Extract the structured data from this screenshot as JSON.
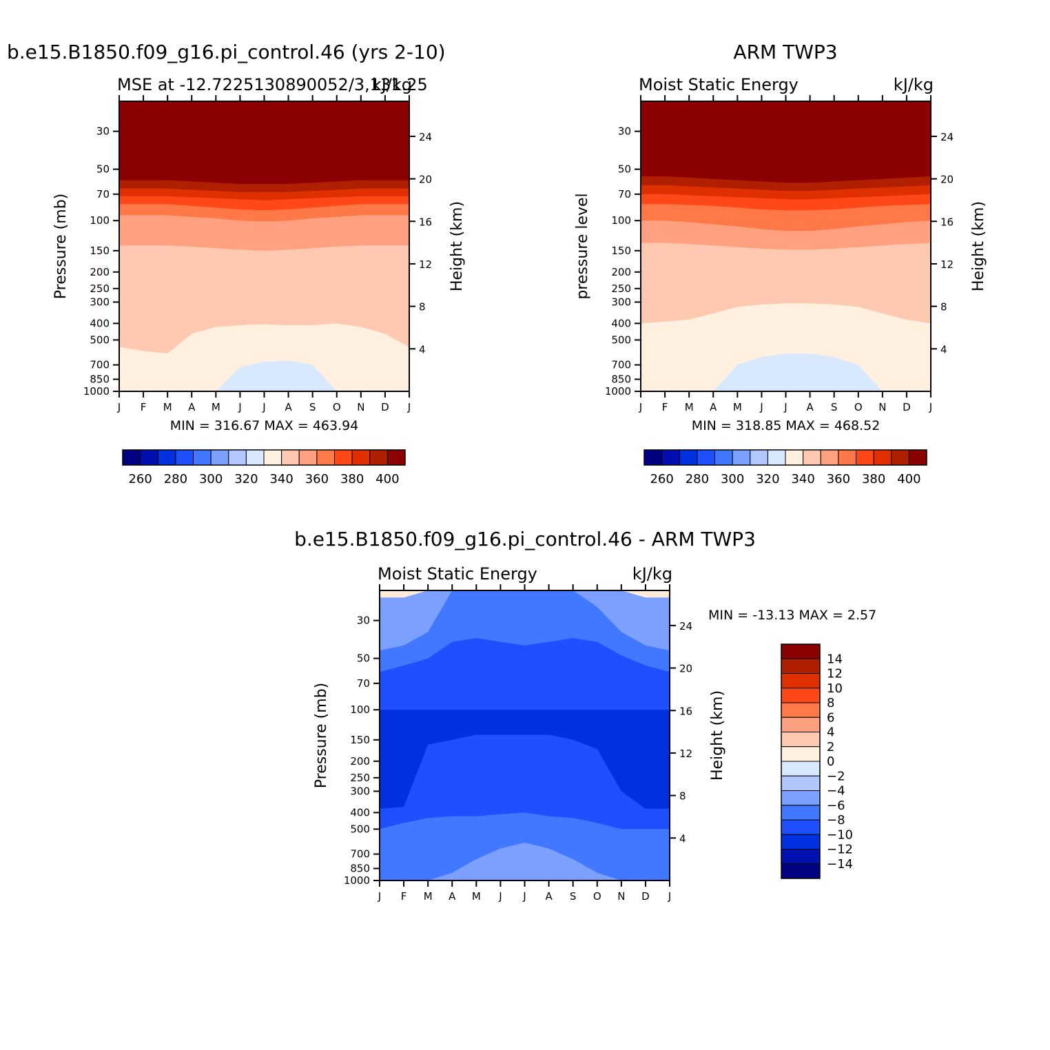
{
  "panels": [
    {
      "id": "model",
      "title": "b.e15.B1850.f09_g16.pi_control.46 (yrs 2-10)",
      "left_label": "MSE at -12.7225130890052/3,131.25",
      "right_label": "kJ/kg",
      "ylabel": "Pressure  (mb)",
      "ylabel_right": "Height  (km)",
      "minmax": "MIN = 316.67  MAX = 463.94"
    },
    {
      "id": "obs",
      "title": "ARM TWP3",
      "left_label": "Moist Static Energy",
      "right_label": "kJ/kg",
      "ylabel": "pressure  level",
      "ylabel_right": "Height  (km)",
      "minmax": "MIN = 318.85  MAX = 468.52"
    },
    {
      "id": "diff",
      "title": "b.e15.B1850.f09_g16.pi_control.46 - ARM TWP3",
      "left_label": "Moist Static Energy",
      "right_label": "kJ/kg",
      "ylabel": "Pressure  (mb)",
      "ylabel_right": "Height  (km)",
      "minmax": "MIN = -13.13  MAX =     2.57"
    }
  ],
  "chart_data": [
    {
      "type": "heatmap",
      "panel": "model",
      "x_ticks": [
        "J",
        "F",
        "M",
        "A",
        "M",
        "J",
        "J",
        "A",
        "S",
        "O",
        "N",
        "D",
        "J"
      ],
      "y_ticks_pressure": [
        30,
        50,
        70,
        100,
        150,
        200,
        250,
        300,
        400,
        500,
        700,
        850,
        1000
      ],
      "y_ticks_height": [
        24,
        20,
        16,
        12,
        8,
        4
      ],
      "levels": [
        260,
        270,
        280,
        290,
        300,
        310,
        320,
        330,
        340,
        350,
        360,
        370,
        380,
        390,
        400
      ],
      "colorbar_labels": [
        260,
        280,
        300,
        320,
        340,
        360,
        380,
        400
      ],
      "min": 316.67,
      "max": 463.94,
      "layers": [
        {
          "level": 390,
          "boundary": [
            58,
            58,
            58,
            59,
            60,
            61,
            61,
            61,
            60,
            59,
            58,
            58,
            58
          ]
        },
        {
          "level": 380,
          "boundary": [
            65,
            65,
            65,
            66,
            67,
            68,
            68,
            68,
            67,
            66,
            65,
            65,
            65
          ]
        },
        {
          "level": 370,
          "boundary": [
            72,
            72,
            72,
            73,
            74,
            75,
            76,
            75,
            74,
            73,
            72,
            72,
            72
          ]
        },
        {
          "level": 360,
          "boundary": [
            80,
            80,
            80,
            82,
            84,
            86,
            87,
            86,
            84,
            82,
            80,
            80,
            80
          ]
        },
        {
          "level": 350,
          "boundary": [
            93,
            93,
            93,
            95,
            97,
            100,
            101,
            100,
            97,
            95,
            93,
            93,
            93
          ]
        },
        {
          "level": 340,
          "boundary": [
            140,
            140,
            140,
            142,
            145,
            148,
            150,
            148,
            145,
            142,
            140,
            140,
            140
          ]
        },
        {
          "level": 330,
          "boundary": [
            550,
            580,
            600,
            460,
            420,
            410,
            405,
            410,
            410,
            400,
            420,
            460,
            550
          ]
        },
        {
          "level": 320,
          "boundary": [
            1000,
            1000,
            1000,
            1000,
            1000,
            720,
            670,
            660,
            700,
            1000,
            1000,
            1000,
            1000
          ]
        }
      ]
    },
    {
      "type": "heatmap",
      "panel": "obs",
      "x_ticks": [
        "J",
        "F",
        "M",
        "A",
        "M",
        "J",
        "J",
        "A",
        "S",
        "O",
        "N",
        "D",
        "J"
      ],
      "y_ticks_pressure": [
        30,
        50,
        70,
        100,
        150,
        200,
        250,
        300,
        400,
        500,
        700,
        850,
        1000
      ],
      "y_ticks_height": [
        24,
        20,
        16,
        12,
        8,
        4
      ],
      "levels": [
        260,
        270,
        280,
        290,
        300,
        310,
        320,
        330,
        340,
        350,
        360,
        370,
        380,
        390,
        400
      ],
      "colorbar_labels": [
        260,
        280,
        300,
        320,
        340,
        360,
        380,
        400
      ],
      "min": 318.85,
      "max": 468.52,
      "layers": [
        {
          "level": 390,
          "boundary": [
            55,
            55,
            56,
            57,
            58,
            59,
            60,
            60,
            59,
            58,
            57,
            56,
            55
          ]
        },
        {
          "level": 380,
          "boundary": [
            62,
            62,
            63,
            64,
            65,
            66,
            67,
            67,
            66,
            65,
            64,
            63,
            62
          ]
        },
        {
          "level": 370,
          "boundary": [
            70,
            70,
            71,
            72,
            73,
            74,
            75,
            75,
            74,
            73,
            72,
            71,
            70
          ]
        },
        {
          "level": 360,
          "boundary": [
            80,
            80,
            81,
            82,
            84,
            86,
            87,
            87,
            86,
            84,
            82,
            81,
            80
          ]
        },
        {
          "level": 350,
          "boundary": [
            100,
            100,
            102,
            105,
            108,
            112,
            115,
            115,
            112,
            108,
            105,
            102,
            100
          ]
        },
        {
          "level": 340,
          "boundary": [
            135,
            135,
            137,
            140,
            143,
            146,
            148,
            148,
            146,
            143,
            140,
            137,
            135
          ]
        },
        {
          "level": 330,
          "boundary": [
            400,
            390,
            380,
            350,
            320,
            310,
            305,
            305,
            310,
            320,
            350,
            380,
            400
          ]
        },
        {
          "level": 320,
          "boundary": [
            1000,
            1000,
            1000,
            1000,
            700,
            630,
            600,
            600,
            630,
            700,
            1000,
            1000,
            1000
          ]
        }
      ]
    },
    {
      "type": "heatmap",
      "panel": "diff",
      "x_ticks": [
        "J",
        "F",
        "M",
        "A",
        "M",
        "J",
        "J",
        "A",
        "S",
        "O",
        "N",
        "D",
        "J"
      ],
      "y_ticks_pressure": [
        30,
        50,
        70,
        100,
        150,
        200,
        250,
        300,
        400,
        500,
        700,
        850,
        1000
      ],
      "y_ticks_height": [
        24,
        20,
        16,
        12,
        8,
        4
      ],
      "levels": [
        -14,
        -12,
        -10,
        -8,
        -6,
        -4,
        -2,
        0,
        2,
        4,
        6,
        8,
        10,
        12,
        14
      ],
      "colorbar_labels": [
        14,
        12,
        10,
        8,
        6,
        4,
        2,
        0,
        -2,
        -4,
        -6,
        -8,
        -10,
        -12,
        -14
      ],
      "min": -13.13,
      "max": 2.57,
      "layers": [
        {
          "level": -4,
          "boundary": [
            22,
            22,
            20,
            20,
            20,
            20,
            20,
            20,
            20,
            20,
            20,
            22,
            22
          ]
        },
        {
          "level": -6,
          "boundary": [
            45,
            42,
            35,
            20,
            20,
            20,
            20,
            20,
            20,
            25,
            35,
            42,
            45
          ]
        },
        {
          "level": -8,
          "boundary": [
            60,
            55,
            50,
            40,
            38,
            40,
            42,
            40,
            38,
            40,
            48,
            55,
            60
          ]
        },
        {
          "level": -10,
          "boundary": [
            100,
            100,
            100,
            100,
            100,
            100,
            100,
            100,
            100,
            100,
            100,
            100,
            100
          ]
        },
        {
          "level": -8,
          "boundary": [
            380,
            370,
            160,
            150,
            140,
            140,
            140,
            140,
            150,
            170,
            300,
            380,
            380
          ]
        },
        {
          "level": -6,
          "boundary": [
            500,
            460,
            430,
            420,
            420,
            410,
            400,
            420,
            430,
            460,
            500,
            500,
            500
          ]
        },
        {
          "level": -4,
          "boundary": [
            1000,
            1000,
            1000,
            900,
            750,
            650,
            600,
            650,
            750,
            900,
            1000,
            1000,
            1000
          ]
        }
      ]
    }
  ]
}
